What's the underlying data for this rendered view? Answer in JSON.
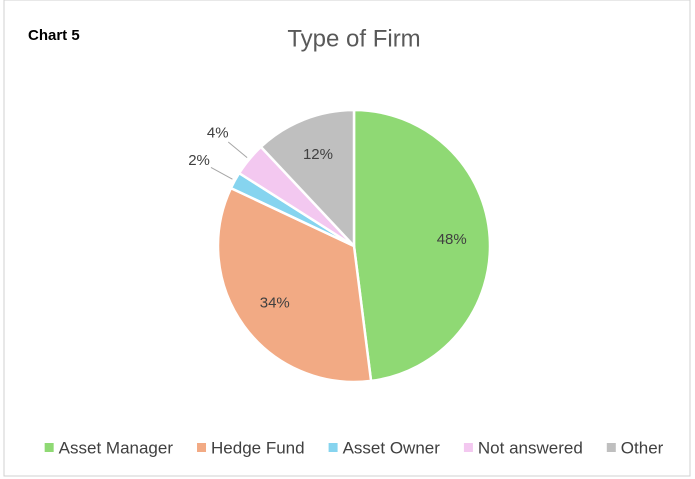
{
  "chart_label": "Chart 5",
  "chart_data": {
    "type": "pie",
    "title": "Type of Firm",
    "categories": [
      "Asset Manager",
      "Hedge Fund",
      "Asset Owner",
      "Not answered",
      "Other"
    ],
    "values": [
      48,
      34,
      2,
      4,
      12
    ],
    "value_labels": [
      "48%",
      "34%",
      "2%",
      "4%",
      "12%"
    ],
    "colors": [
      "#8fd974",
      "#f2aa84",
      "#86d4ef",
      "#f3c8f0",
      "#bfbfbf"
    ],
    "legend": "bottom"
  }
}
